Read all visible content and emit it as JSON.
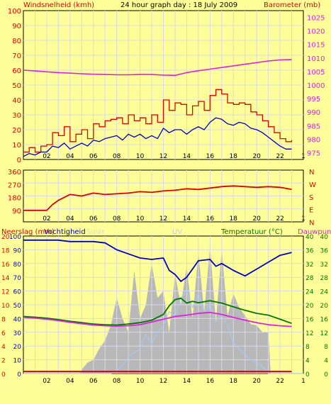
{
  "header": {
    "left_label": "Windsnelheid (kmh)",
    "title": "24 hour graph day : 18 July 2009",
    "right_label": "Barometer (mb)"
  },
  "colors": {
    "background": "#ffff99",
    "plot_bg": "#ffff99",
    "grid": "#d8d8e8",
    "wind_gust": "#e00000",
    "wind_avg": "#0000cc",
    "barometer": "#e020e0",
    "direction": "#e00000",
    "humidity": "#0000cc",
    "temperature": "#007700",
    "dewpoint": "#e020e0",
    "solar": "#b8b8b8",
    "uv": "#a8c8f8",
    "rain": "#e00000",
    "left_text": "#e00000",
    "axis_text": "#000000"
  },
  "x_ticks": [
    "02",
    "04",
    "06",
    "08",
    "10",
    "12",
    "14",
    "16",
    "18",
    "20",
    "22",
    "1"
  ],
  "chart_data": [
    {
      "type": "line",
      "title": "24 hour graph day : 18 July 2009",
      "x_range": [
        0,
        24
      ],
      "y_left": {
        "label": "Windsnelheid (kmh)",
        "ticks": [
          "0",
          "10",
          "20",
          "30",
          "40",
          "50",
          "60",
          "70",
          "80",
          "90",
          "100"
        ],
        "lim": [
          0,
          100
        ]
      },
      "y_right": {
        "label": "Barometer (mb)",
        "ticks": [
          "975",
          "980",
          "985",
          "990",
          "995",
          "1000",
          "1005",
          "1010",
          "1015",
          "1020",
          "1025"
        ],
        "lim": [
          972.5,
          1027.5
        ]
      },
      "series": [
        {
          "name": "Windsnelheid gust",
          "axis": "left",
          "x": [
            0,
            0.5,
            1,
            1.5,
            2,
            2.5,
            3,
            3.5,
            4,
            4.5,
            5,
            5.5,
            6,
            6.5,
            7,
            7.5,
            8,
            8.5,
            9,
            9.5,
            10,
            10.5,
            11,
            11.5,
            12,
            12.5,
            13,
            13.5,
            14,
            14.5,
            15,
            15.5,
            16,
            16.5,
            17,
            17.5,
            18,
            18.5,
            19,
            19.5,
            20,
            20.5,
            21,
            21.5,
            22,
            22.5,
            23
          ],
          "y": [
            5,
            8,
            5,
            9,
            10,
            18,
            16,
            22,
            12,
            17,
            20,
            14,
            24,
            22,
            26,
            27,
            28,
            24,
            30,
            26,
            28,
            24,
            30,
            25,
            40,
            33,
            38,
            37,
            30,
            36,
            39,
            33,
            43,
            47,
            44,
            38,
            37,
            38,
            37,
            32,
            30,
            26,
            22,
            18,
            14,
            12,
            13
          ]
        },
        {
          "name": "Windsnelheid avg",
          "axis": "left",
          "x": [
            0,
            0.5,
            1,
            1.5,
            2,
            2.5,
            3,
            3.5,
            4,
            4.5,
            5,
            5.5,
            6,
            6.5,
            7,
            7.5,
            8,
            8.5,
            9,
            9.5,
            10,
            10.5,
            11,
            11.5,
            12,
            12.5,
            13,
            13.5,
            14,
            14.5,
            15,
            15.5,
            16,
            16.5,
            17,
            17.5,
            18,
            18.5,
            19,
            19.5,
            20,
            20.5,
            21,
            21.5,
            22,
            22.5,
            23
          ],
          "y": [
            2,
            4,
            3,
            5,
            5,
            9,
            8,
            11,
            7,
            9,
            11,
            9,
            13,
            12,
            14,
            15,
            16,
            13,
            17,
            15,
            17,
            14,
            16,
            14,
            21,
            18,
            20,
            20,
            17,
            20,
            22,
            20,
            25,
            28,
            27,
            24,
            23,
            25,
            24,
            21,
            20,
            18,
            15,
            12,
            9,
            7,
            7
          ]
        },
        {
          "name": "Barometer",
          "axis": "right",
          "x": [
            0,
            1,
            2,
            3,
            4,
            5,
            6,
            7,
            8,
            9,
            10,
            11,
            12,
            13,
            14,
            15,
            16,
            17,
            18,
            19,
            20,
            21,
            22,
            23
          ],
          "y": [
            1005.5,
            1005.2,
            1004.9,
            1004.6,
            1004.4,
            1004.2,
            1004.0,
            1003.9,
            1003.8,
            1003.8,
            1003.9,
            1003.9,
            1003.7,
            1003.6,
            1004.6,
            1005.3,
            1005.9,
            1006.5,
            1007.1,
            1007.7,
            1008.3,
            1008.9,
            1009.3,
            1009.4
          ]
        }
      ]
    },
    {
      "type": "line",
      "title": "",
      "x_range": [
        0,
        24
      ],
      "y_left": {
        "ticks": [
          "90",
          "180",
          "270",
          "360"
        ],
        "lim": [
          0,
          360
        ]
      },
      "y_right": {
        "ticks": [
          "N",
          "W",
          "S",
          "E",
          "N"
        ],
        "lim": [
          0,
          360
        ]
      },
      "series": [
        {
          "name": "Wind direction",
          "axis": "left",
          "x": [
            0,
            1,
            2,
            2.5,
            3,
            4,
            5,
            6,
            7,
            8,
            9,
            10,
            11,
            12,
            13,
            14,
            15,
            16,
            17,
            18,
            19,
            20,
            21,
            22,
            23
          ],
          "y": [
            90,
            90,
            90,
            130,
            160,
            200,
            190,
            210,
            200,
            205,
            210,
            220,
            215,
            225,
            230,
            240,
            235,
            245,
            255,
            260,
            255,
            250,
            255,
            250,
            235
          ]
        }
      ]
    },
    {
      "type": "line",
      "title": "",
      "x_range": [
        0,
        24
      ],
      "legend": [
        "Neerslag (mm)",
        "Vochtigheid",
        "Solar",
        "UV",
        "Temperatuur (°C)",
        "Dauwpunt"
      ],
      "y_left_outer": {
        "label": "Neerslag (mm)",
        "ticks": [
          "0",
          "2",
          "4",
          "6",
          "8",
          "10",
          "12",
          "14",
          "16",
          "18",
          "20"
        ],
        "lim": [
          0,
          20
        ]
      },
      "y_left_inner": {
        "label": "Vochtigheid",
        "ticks": [
          "0",
          "10",
          "20",
          "30",
          "40",
          "50",
          "60",
          "70",
          "80",
          "90",
          "100"
        ],
        "lim": [
          0,
          100
        ]
      },
      "y_right_inner": {
        "label": "Temperatuur (°C)",
        "ticks": [
          "0",
          "4",
          "8",
          "12",
          "16",
          "20",
          "24",
          "28",
          "32",
          "36",
          "40"
        ],
        "lim": [
          0,
          40
        ]
      },
      "y_right_outer": {
        "label": "Dauwpunt",
        "ticks": [
          "0",
          "4",
          "8",
          "12",
          "16",
          "20",
          "24",
          "28",
          "32",
          "36",
          "40"
        ],
        "lim": [
          0,
          40
        ]
      },
      "series": [
        {
          "name": "Vochtigheid",
          "axis": "left_inner",
          "x": [
            0,
            1,
            2,
            3,
            4,
            5,
            6,
            7,
            8,
            9,
            10,
            11,
            12,
            12.5,
            13,
            13.5,
            14,
            14.5,
            15,
            16,
            16.5,
            17,
            18,
            19,
            20,
            21,
            22,
            23
          ],
          "y": [
            97,
            97,
            97,
            97,
            96,
            96,
            96,
            95,
            90,
            87,
            84,
            83,
            84,
            75,
            72,
            67,
            70,
            76,
            82,
            83,
            78,
            80,
            75,
            71,
            76,
            81,
            86,
            88
          ]
        },
        {
          "name": "Temperatuur",
          "axis": "right_inner",
          "x": [
            0,
            1,
            2,
            3,
            4,
            5,
            6,
            7,
            8,
            9,
            10,
            11,
            12,
            12.5,
            13,
            13.5,
            14,
            14.5,
            15,
            16,
            17,
            18,
            19,
            20,
            21,
            22,
            23
          ],
          "y": [
            16.6,
            16.4,
            16.1,
            15.7,
            15.2,
            14.8,
            14.4,
            14.2,
            14.1,
            14.4,
            14.8,
            15.5,
            17.2,
            19.7,
            21.5,
            21.9,
            20.5,
            21.0,
            20.6,
            21.2,
            20.5,
            19.4,
            18.4,
            17.5,
            17.0,
            15.8,
            14.6
          ]
        },
        {
          "name": "Dauwpunt",
          "axis": "right_inner",
          "x": [
            0,
            1,
            2,
            3,
            4,
            5,
            6,
            7,
            8,
            9,
            10,
            11,
            12,
            13,
            14,
            15,
            16,
            17,
            18,
            19,
            20,
            21,
            22,
            23
          ],
          "y": [
            16.3,
            16.1,
            15.8,
            15.4,
            14.9,
            14.5,
            14.1,
            13.9,
            13.8,
            13.9,
            14.2,
            15.0,
            15.8,
            16.6,
            17.0,
            17.5,
            17.8,
            17.2,
            16.3,
            15.5,
            14.8,
            14.2,
            13.9,
            13.7
          ]
        },
        {
          "name": "Solar",
          "axis": "left_inner",
          "type": "area",
          "x": [
            0,
            4.8,
            5.0,
            5.5,
            6,
            6.5,
            7,
            7.5,
            8,
            8.5,
            9,
            9.5,
            10,
            10.5,
            11,
            11.5,
            12,
            12.5,
            13,
            13.5,
            14,
            14.5,
            15,
            15.5,
            16,
            16.5,
            17,
            17.5,
            18,
            18.5,
            19,
            19.5,
            20,
            20.5,
            21,
            21.2,
            21.5,
            22,
            22.5,
            23
          ],
          "y": [
            0,
            0,
            3,
            8,
            10,
            18,
            24,
            35,
            55,
            40,
            30,
            75,
            40,
            50,
            80,
            55,
            60,
            30,
            72,
            50,
            78,
            40,
            88,
            45,
            92,
            38,
            90,
            42,
            58,
            48,
            42,
            36,
            35,
            30,
            30,
            0,
            0,
            0,
            0,
            0
          ]
        },
        {
          "name": "UV",
          "axis": "left_inner",
          "type": "line",
          "x": [
            0,
            7.5,
            8,
            8.5,
            9,
            9.5,
            10,
            10.5,
            11,
            11.5,
            12,
            12.5,
            13,
            13.5,
            14,
            14.5,
            15,
            15.5,
            16,
            16.5,
            17,
            17.5,
            18,
            18.5,
            19,
            19.5,
            20,
            20.5,
            21,
            24
          ],
          "y": [
            0,
            0,
            2,
            6,
            12,
            15,
            18,
            28,
            22,
            30,
            35,
            45,
            42,
            55,
            60,
            48,
            58,
            45,
            50,
            38,
            42,
            35,
            22,
            18,
            14,
            10,
            8,
            5,
            0,
            0
          ]
        },
        {
          "name": "Neerslag",
          "axis": "left_outer",
          "x": [
            0,
            23
          ],
          "y": [
            0.2,
            0.2
          ]
        }
      ]
    }
  ]
}
